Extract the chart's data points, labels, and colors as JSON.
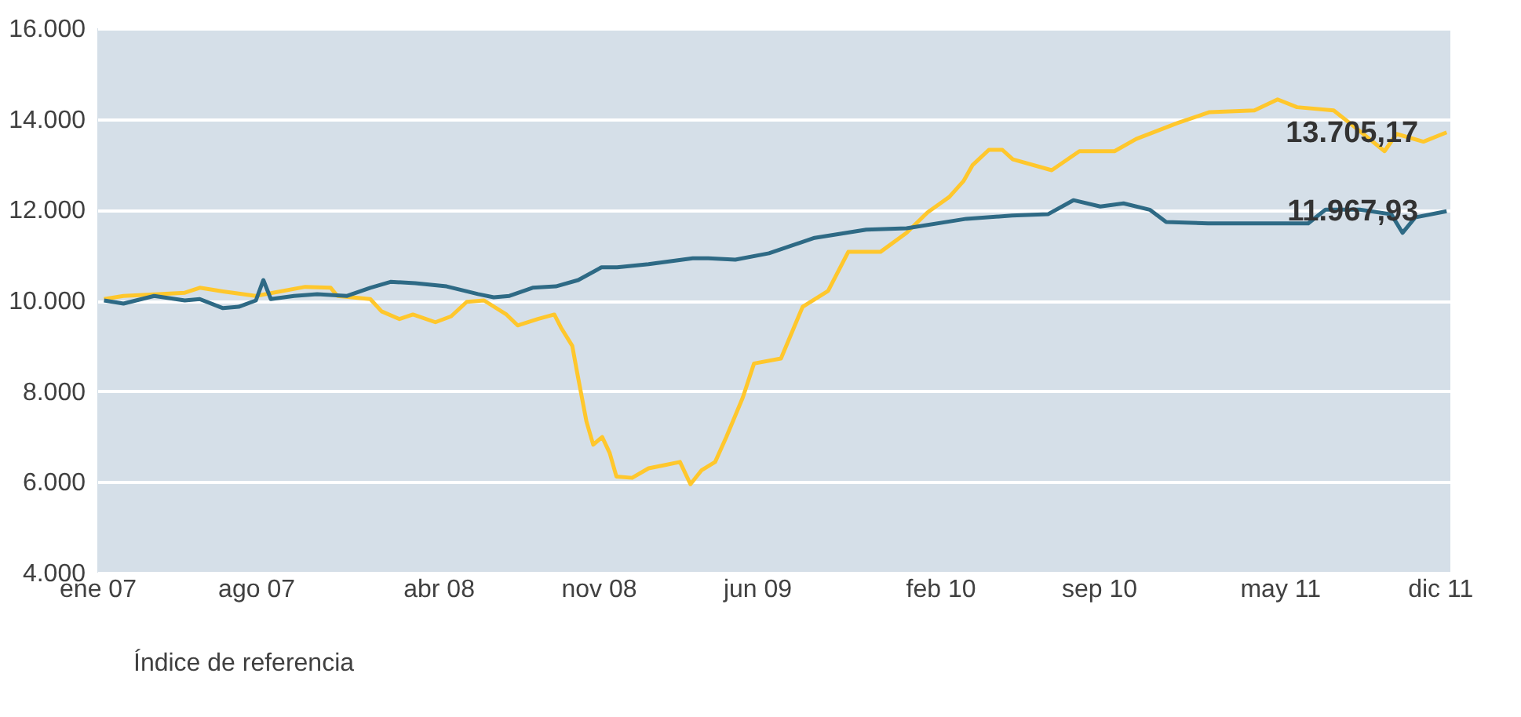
{
  "chart_data": {
    "type": "line",
    "xlim": [
      "2007-01-01",
      "2011-12-15"
    ],
    "xticks": [
      {
        "value": "2007-01-01",
        "label": "ene 07"
      },
      {
        "value": "2007-08-01",
        "label": "ago 07"
      },
      {
        "value": "2008-04-01",
        "label": "abr 08"
      },
      {
        "value": "2008-11-01",
        "label": "nov 08"
      },
      {
        "value": "2009-06-01",
        "label": "jun 09"
      },
      {
        "value": "2010-02-01",
        "label": "feb 10"
      },
      {
        "value": "2010-09-01",
        "label": "sep 10"
      },
      {
        "value": "2011-05-01",
        "label": "may 11"
      },
      {
        "value": "2011-12-01",
        "label": "dic 11"
      }
    ],
    "ylim": [
      4000,
      16000
    ],
    "yticks": [
      {
        "value": 4000,
        "label": "4.000"
      },
      {
        "value": 6000,
        "label": "6.000"
      },
      {
        "value": 8000,
        "label": "8.000"
      },
      {
        "value": 10000,
        "label": "10.000"
      },
      {
        "value": 12000,
        "label": "12.000"
      },
      {
        "value": 14000,
        "label": "14.000"
      },
      {
        "value": 16000,
        "label": "16.000"
      }
    ],
    "grid": "y",
    "legend": "bottom",
    "series": [
      {
        "color": "#ffc72c",
        "x": [
          "2007-01-10",
          "2007-02-05",
          "2007-04-28",
          "2007-05-18",
          "2007-06-18",
          "2007-08-01",
          "2007-10-06",
          "2007-11-09",
          "2007-11-18",
          "2008-01-01",
          "2008-01-16",
          "2008-02-09",
          "2008-02-27",
          "2008-03-28",
          "2008-04-18",
          "2008-05-09",
          "2008-06-01",
          "2008-07-01",
          "2008-07-16",
          "2008-08-12",
          "2008-09-03",
          "2008-09-12",
          "2008-09-27",
          "2008-10-04",
          "2008-10-16",
          "2008-10-25",
          "2008-11-06",
          "2008-11-16",
          "2008-11-25",
          "2008-12-16",
          "2009-01-07",
          "2009-01-28",
          "2009-02-18",
          "2009-03-04",
          "2009-03-19",
          "2009-04-06",
          "2009-04-21",
          "2009-05-13",
          "2009-05-28",
          "2009-07-03",
          "2009-08-01",
          "2009-09-04",
          "2009-10-01",
          "2009-11-13",
          "2009-12-18",
          "2010-01-15",
          "2010-02-13",
          "2010-03-04",
          "2010-03-16",
          "2010-04-07",
          "2010-04-25",
          "2010-05-09",
          "2010-06-30",
          "2010-08-06",
          "2010-09-22",
          "2010-10-21",
          "2010-12-15",
          "2011-01-27",
          "2011-03-28",
          "2011-04-28",
          "2011-05-24",
          "2011-07-12",
          "2011-08-10",
          "2011-09-18",
          "2011-10-04",
          "2011-11-09",
          "2011-12-10"
        ],
        "values": [
          10030,
          10100,
          10170,
          10280,
          10200,
          10100,
          10300,
          10280,
          10100,
          10030,
          9760,
          9590,
          9690,
          9520,
          9650,
          9970,
          10000,
          9690,
          9450,
          9590,
          9690,
          9400,
          9000,
          8370,
          7330,
          6820,
          6990,
          6640,
          6120,
          6090,
          6300,
          6370,
          6440,
          5950,
          6260,
          6440,
          6990,
          7860,
          8610,
          8720,
          9860,
          10210,
          11070,
          11070,
          11490,
          11940,
          12280,
          12630,
          12980,
          13320,
          13320,
          13110,
          12870,
          13290,
          13290,
          13560,
          13910,
          14150,
          14190,
          14430,
          14260,
          14190,
          13810,
          13290,
          13670,
          13500,
          13705.17
        ]
      },
      {
        "name": "Índice de referencia",
        "color": "#2e6a85",
        "x": [
          "2007-01-10",
          "2007-02-05",
          "2007-03-18",
          "2007-04-28",
          "2007-05-18",
          "2007-06-18",
          "2007-07-09",
          "2007-08-01",
          "2007-08-11",
          "2007-08-21",
          "2007-09-21",
          "2007-10-22",
          "2007-12-01",
          "2008-01-01",
          "2008-01-28",
          "2008-03-01",
          "2008-04-12",
          "2008-05-24",
          "2008-06-14",
          "2008-07-05",
          "2008-08-05",
          "2008-09-05",
          "2008-10-05",
          "2008-11-05",
          "2008-11-26",
          "2009-01-07",
          "2009-03-07",
          "2009-03-28",
          "2009-05-03",
          "2009-06-17",
          "2009-08-17",
          "2009-10-25",
          "2009-12-18",
          "2010-03-08",
          "2010-05-08",
          "2010-06-25",
          "2010-07-29",
          "2010-09-03",
          "2010-10-04",
          "2010-11-08",
          "2010-11-30",
          "2011-01-25",
          "2011-03-20",
          "2011-06-08",
          "2011-07-01",
          "2011-08-16",
          "2011-09-27",
          "2011-10-12",
          "2011-10-29",
          "2011-12-10"
        ],
        "values": [
          10000,
          9930,
          10100,
          10000,
          10030,
          9830,
          9860,
          10000,
          10450,
          10030,
          10100,
          10140,
          10100,
          10280,
          10410,
          10380,
          10310,
          10140,
          10070,
          10100,
          10280,
          10310,
          10450,
          10730,
          10730,
          10800,
          10930,
          10930,
          10900,
          11040,
          11380,
          11560,
          11590,
          11800,
          11870,
          11900,
          12210,
          12070,
          12140,
          12000,
          11730,
          11700,
          11700,
          11700,
          12000,
          12000,
          11900,
          11490,
          11830,
          11967.93
        ]
      }
    ],
    "annotations": [
      {
        "text": "13.705,17",
        "x": "2011-12-10",
        "y": 13705.17
      },
      {
        "text": "11.967,93",
        "x": "2011-12-10",
        "y": 11967.93
      }
    ]
  }
}
